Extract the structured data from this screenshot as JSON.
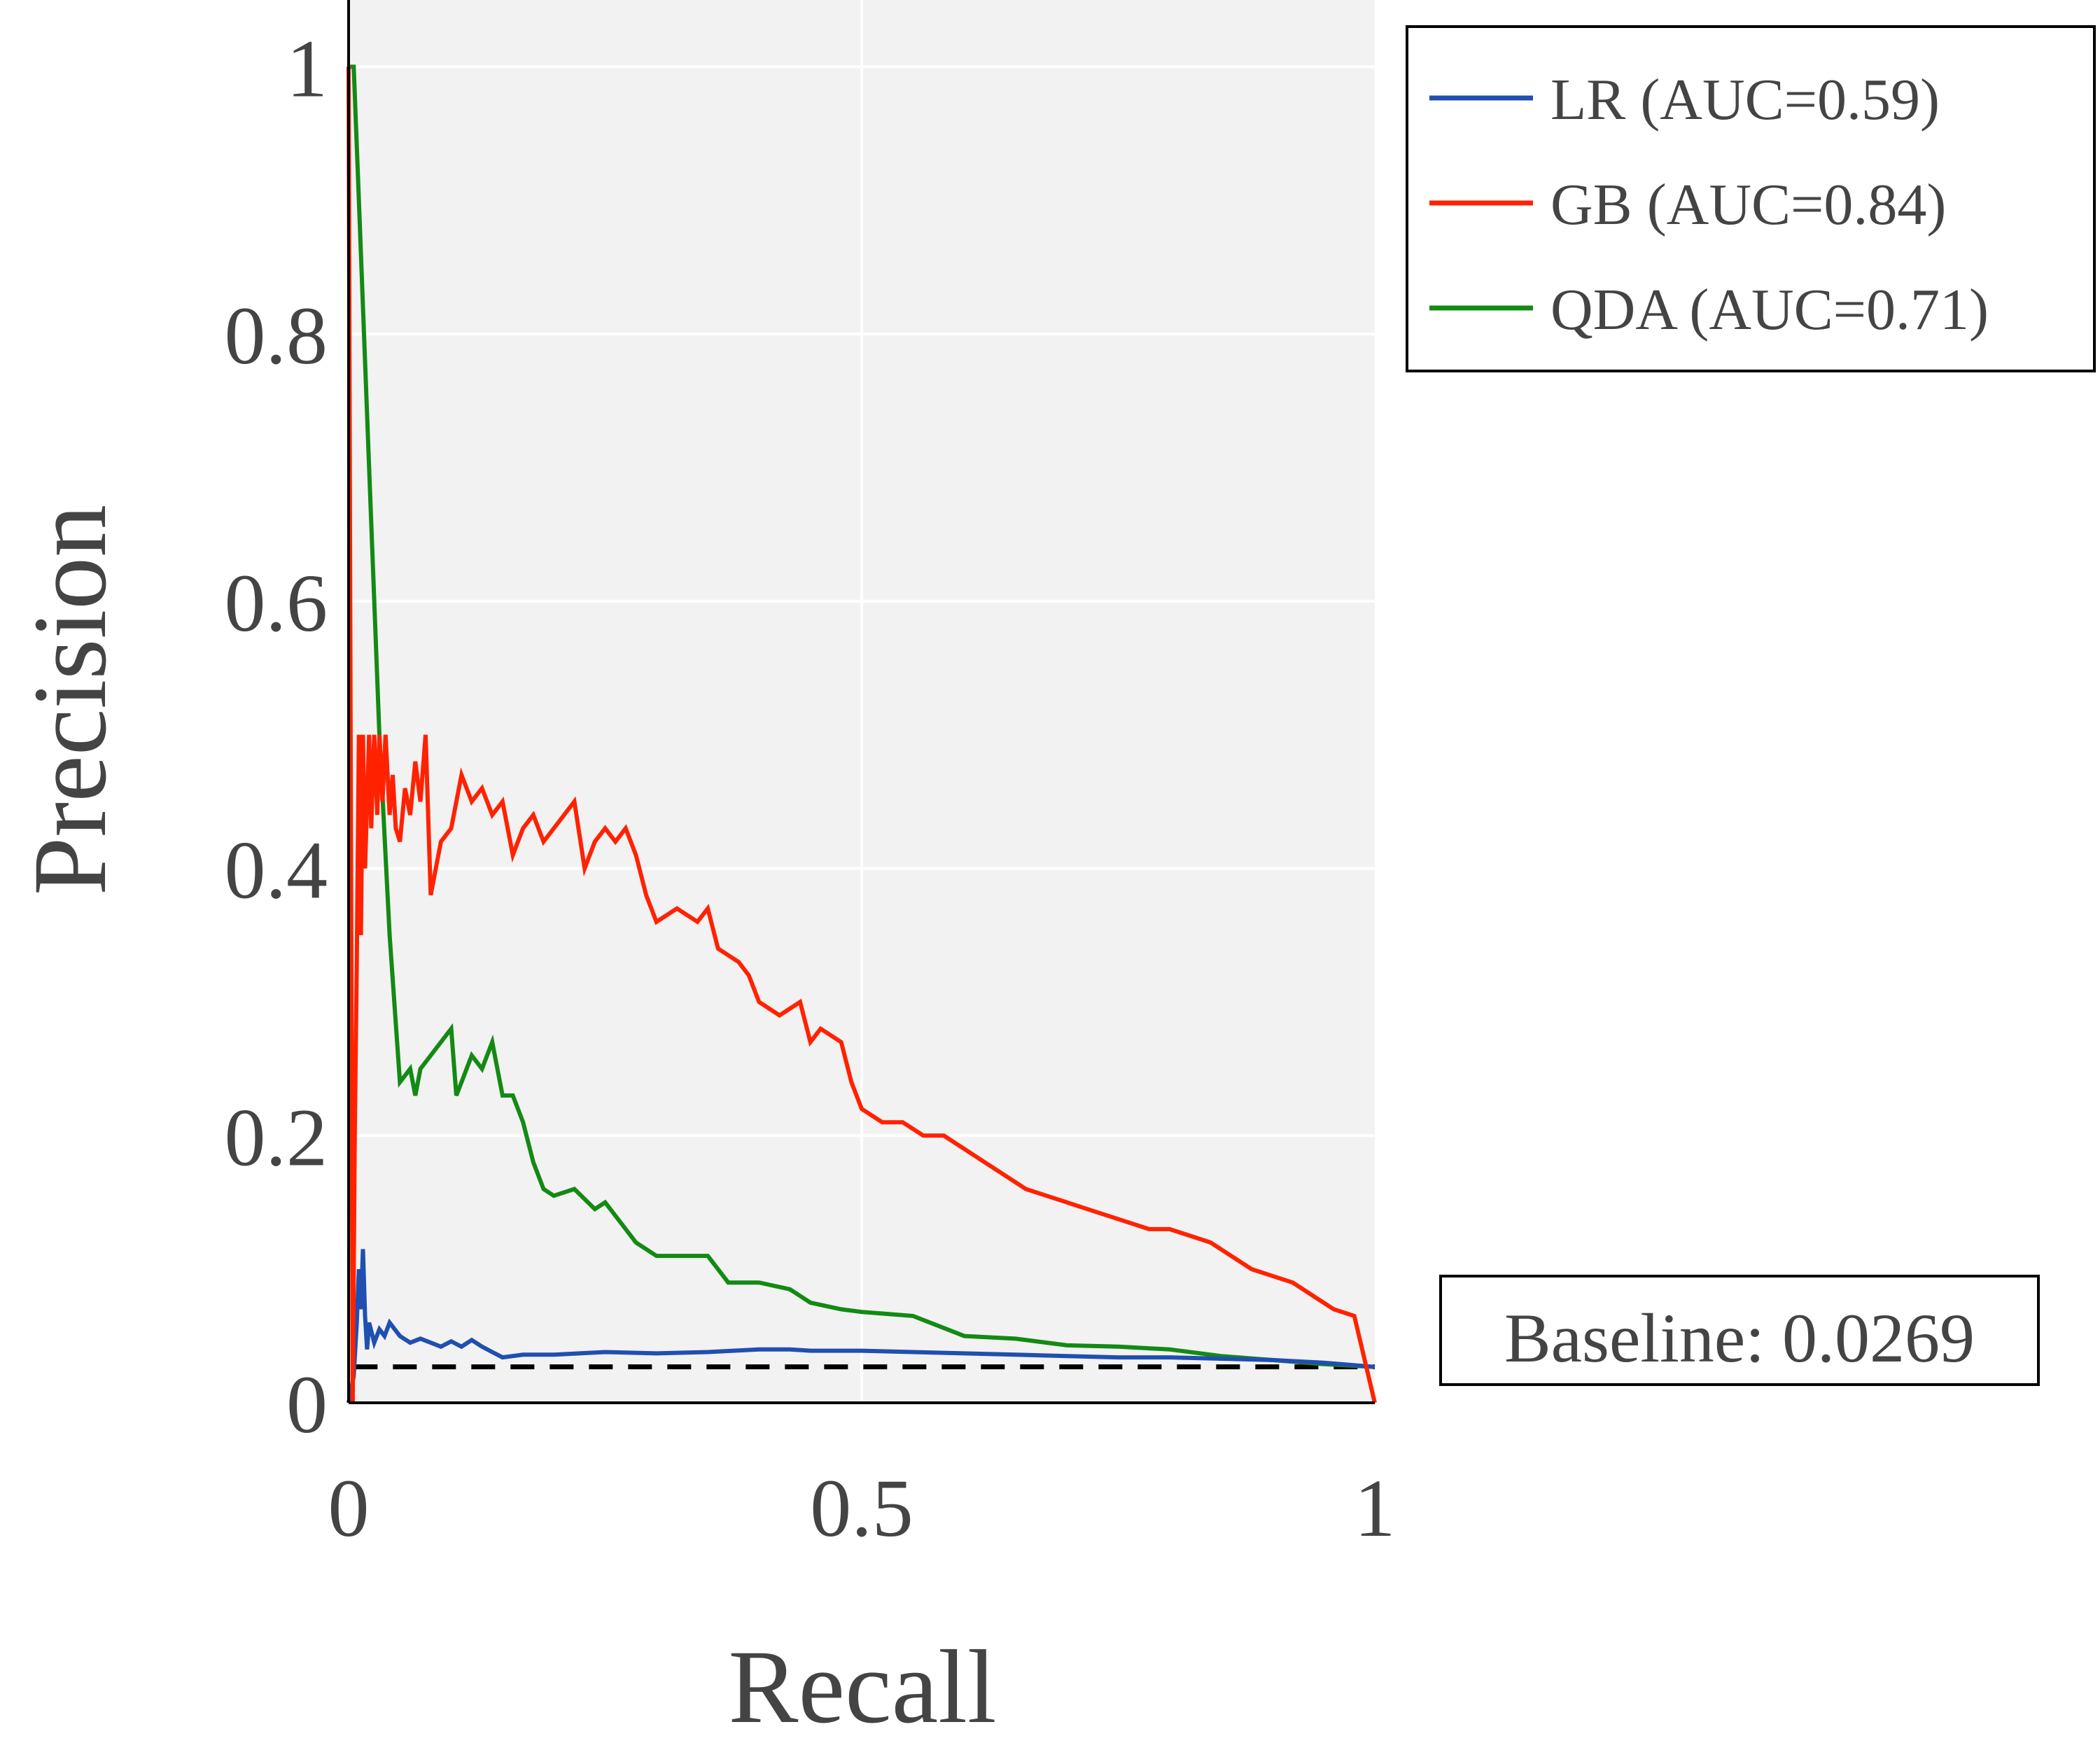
{
  "chart_data": {
    "type": "line",
    "xlabel": "Recall",
    "ylabel": "Precision",
    "xlim": [
      0,
      1
    ],
    "ylim": [
      0,
      1.05
    ],
    "x_ticks": [
      {
        "value": 0,
        "label": "0"
      },
      {
        "value": 0.5,
        "label": "0.5"
      },
      {
        "value": 1,
        "label": "1"
      }
    ],
    "y_ticks": [
      {
        "value": 0,
        "label": "0"
      },
      {
        "value": 0.2,
        "label": "0.2"
      },
      {
        "value": 0.4,
        "label": "0.4"
      },
      {
        "value": 0.6,
        "label": "0.6"
      },
      {
        "value": 0.8,
        "label": "0.8"
      },
      {
        "value": 1,
        "label": "1"
      }
    ],
    "grid": true,
    "plot_background": "#f2f2f2",
    "legend_position": "outside-top-right",
    "series": [
      {
        "name": "LR (AUC=0.59)",
        "color": "#1f4fb0",
        "x": [
          0,
          0.005,
          0.008,
          0.01,
          0.012,
          0.014,
          0.016,
          0.018,
          0.02,
          0.025,
          0.03,
          0.035,
          0.04,
          0.05,
          0.06,
          0.07,
          0.08,
          0.09,
          0.1,
          0.11,
          0.12,
          0.13,
          0.14,
          0.15,
          0.17,
          0.2,
          0.25,
          0.3,
          0.35,
          0.4,
          0.43,
          0.45,
          0.5,
          0.55,
          0.6,
          0.65,
          0.7,
          0.75,
          0.8,
          0.85,
          0.9,
          0.95,
          1.0
        ],
        "y": [
          0,
          0.02,
          0.06,
          0.1,
          0.07,
          0.115,
          0.065,
          0.04,
          0.06,
          0.045,
          0.055,
          0.05,
          0.06,
          0.05,
          0.045,
          0.048,
          0.045,
          0.042,
          0.046,
          0.042,
          0.047,
          0.042,
          0.038,
          0.034,
          0.036,
          0.036,
          0.038,
          0.037,
          0.038,
          0.04,
          0.04,
          0.039,
          0.039,
          0.038,
          0.037,
          0.036,
          0.035,
          0.034,
          0.034,
          0.033,
          0.032,
          0.03,
          0.0269
        ]
      },
      {
        "name": "GB (AUC=0.84)",
        "color": "#ff2200",
        "x": [
          0,
          0.002,
          0.004,
          0.006,
          0.008,
          0.01,
          0.012,
          0.014,
          0.016,
          0.018,
          0.02,
          0.022,
          0.025,
          0.028,
          0.03,
          0.033,
          0.036,
          0.04,
          0.043,
          0.046,
          0.05,
          0.055,
          0.06,
          0.065,
          0.07,
          0.075,
          0.08,
          0.085,
          0.09,
          0.1,
          0.11,
          0.12,
          0.13,
          0.14,
          0.15,
          0.16,
          0.17,
          0.18,
          0.19,
          0.2,
          0.21,
          0.22,
          0.23,
          0.24,
          0.25,
          0.26,
          0.27,
          0.28,
          0.29,
          0.3,
          0.32,
          0.34,
          0.35,
          0.36,
          0.38,
          0.39,
          0.4,
          0.42,
          0.44,
          0.45,
          0.46,
          0.48,
          0.49,
          0.5,
          0.52,
          0.54,
          0.56,
          0.58,
          0.6,
          0.62,
          0.64,
          0.66,
          0.68,
          0.7,
          0.72,
          0.74,
          0.76,
          0.78,
          0.8,
          0.82,
          0.84,
          0.86,
          0.88,
          0.9,
          0.92,
          0.94,
          0.96,
          0.98,
          1.0
        ],
        "y": [
          1.0,
          0.5,
          0.0,
          0.2,
          0.33,
          0.5,
          0.35,
          0.5,
          0.4,
          0.45,
          0.5,
          0.43,
          0.5,
          0.44,
          0.5,
          0.45,
          0.5,
          0.44,
          0.47,
          0.43,
          0.42,
          0.46,
          0.44,
          0.48,
          0.45,
          0.5,
          0.38,
          0.4,
          0.42,
          0.43,
          0.47,
          0.45,
          0.46,
          0.44,
          0.45,
          0.41,
          0.43,
          0.44,
          0.42,
          0.43,
          0.44,
          0.45,
          0.4,
          0.42,
          0.43,
          0.42,
          0.43,
          0.41,
          0.38,
          0.36,
          0.37,
          0.36,
          0.37,
          0.34,
          0.33,
          0.32,
          0.3,
          0.29,
          0.3,
          0.27,
          0.28,
          0.27,
          0.24,
          0.22,
          0.21,
          0.21,
          0.2,
          0.2,
          0.19,
          0.18,
          0.17,
          0.16,
          0.155,
          0.15,
          0.145,
          0.14,
          0.135,
          0.13,
          0.13,
          0.125,
          0.12,
          0.11,
          0.1,
          0.095,
          0.09,
          0.08,
          0.07,
          0.065,
          0.0
        ]
      },
      {
        "name": "QDA (AUC=0.71)",
        "color": "#138a13",
        "x": [
          0,
          0.005,
          0.01,
          0.02,
          0.03,
          0.04,
          0.05,
          0.06,
          0.065,
          0.07,
          0.08,
          0.09,
          0.1,
          0.105,
          0.11,
          0.12,
          0.13,
          0.14,
          0.15,
          0.16,
          0.17,
          0.18,
          0.19,
          0.2,
          0.22,
          0.24,
          0.25,
          0.26,
          0.28,
          0.3,
          0.32,
          0.35,
          0.37,
          0.4,
          0.43,
          0.45,
          0.48,
          0.5,
          0.55,
          0.6,
          0.65,
          0.7,
          0.75,
          0.8,
          0.85,
          0.9,
          0.95,
          1.0
        ],
        "y": [
          1.0,
          1.0,
          0.9,
          0.7,
          0.5,
          0.35,
          0.24,
          0.25,
          0.23,
          0.25,
          0.26,
          0.27,
          0.28,
          0.23,
          0.24,
          0.26,
          0.25,
          0.27,
          0.23,
          0.23,
          0.21,
          0.18,
          0.16,
          0.155,
          0.16,
          0.145,
          0.15,
          0.14,
          0.12,
          0.11,
          0.11,
          0.11,
          0.09,
          0.09,
          0.085,
          0.075,
          0.07,
          0.068,
          0.065,
          0.05,
          0.048,
          0.043,
          0.042,
          0.04,
          0.035,
          0.032,
          0.029,
          0.0269
        ]
      }
    ],
    "reference_line": {
      "y": 0.0269,
      "style": "dashed",
      "color": "#000000"
    },
    "annotation": "Baseline: 0.0269"
  }
}
